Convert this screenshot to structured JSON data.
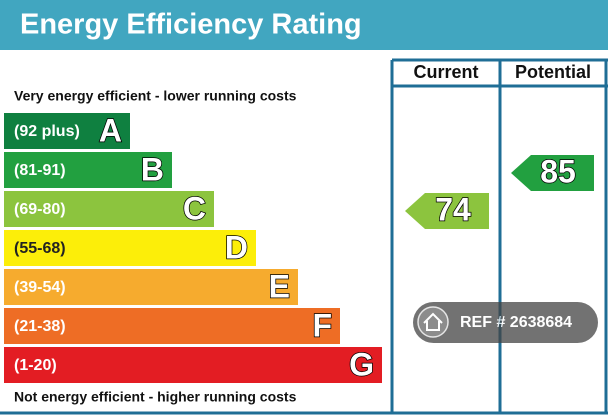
{
  "header": {
    "title": "Energy Efficiency Rating"
  },
  "columns": [
    "Current",
    "Potential"
  ],
  "top_note": "Very energy efficient - lower running costs",
  "bottom_note": "Not energy efficient - higher running costs",
  "bands": [
    {
      "range": "(92 plus)",
      "letter": "A"
    },
    {
      "range": "(81-91)",
      "letter": "B"
    },
    {
      "range": "(69-80)",
      "letter": "C"
    },
    {
      "range": "(55-68)",
      "letter": "D"
    },
    {
      "range": "(39-54)",
      "letter": "E"
    },
    {
      "range": "(21-38)",
      "letter": "F"
    },
    {
      "range": "(1-20)",
      "letter": "G"
    }
  ],
  "current": 74,
  "potential": 85,
  "watermark": "REF # 2638684"
}
